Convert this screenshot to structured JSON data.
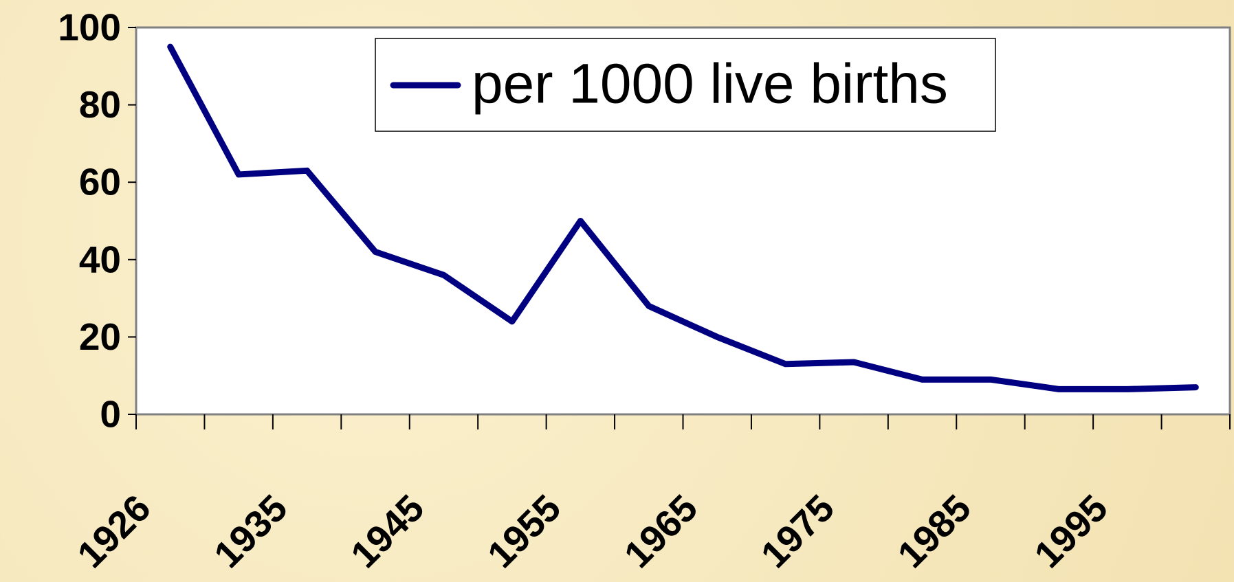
{
  "chart_data": {
    "type": "line",
    "categories": [
      "1926",
      null,
      "1935",
      null,
      "1945",
      null,
      "1955",
      null,
      "1965",
      null,
      "1975",
      null,
      "1985",
      null,
      "1995",
      null
    ],
    "series": [
      {
        "name": "per 1000 live births",
        "color": "#000080",
        "values": [
          95,
          62,
          63,
          42,
          36,
          24,
          50,
          28,
          20,
          13,
          13.5,
          9,
          9,
          6.5,
          6.5,
          7
        ]
      }
    ],
    "ylim": [
      0,
      100
    ],
    "yticks": [
      0,
      20,
      40,
      60,
      80,
      100
    ],
    "grid": false,
    "legend": "top"
  }
}
